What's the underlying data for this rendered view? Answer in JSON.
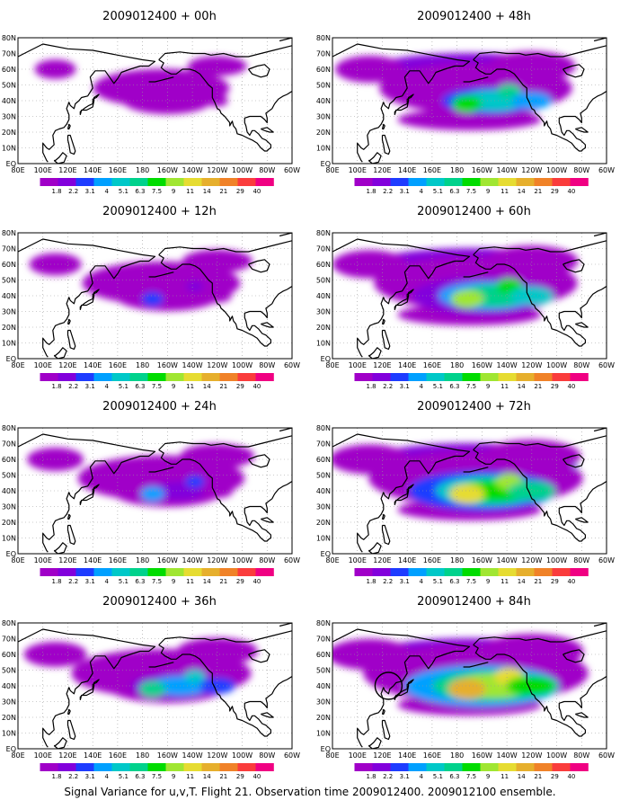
{
  "caption": "Signal Variance for u,v,T. Flight 21. Observation time 2009012400. 2009012100 ensemble.",
  "panels": [
    {
      "title": "2009012400 + 00h",
      "intensity": 0.1
    },
    {
      "title": "2009012400 + 12h",
      "intensity": 0.3
    },
    {
      "title": "2009012400 + 24h",
      "intensity": 0.38
    },
    {
      "title": "2009012400 + 36h",
      "intensity": 0.5
    },
    {
      "title": "2009012400 + 48h",
      "intensity": 0.62
    },
    {
      "title": "2009012400 + 60h",
      "intensity": 0.72
    },
    {
      "title": "2009012400 + 72h",
      "intensity": 0.82
    },
    {
      "title": "2009012400 + 84h",
      "intensity": 0.92
    }
  ],
  "lon_labels": [
    "80E",
    "100E",
    "120E",
    "140E",
    "160E",
    "180",
    "160W",
    "140W",
    "120W",
    "100W",
    "80W",
    "60W"
  ],
  "lat_labels": [
    "80N",
    "70N",
    "60N",
    "50N",
    "40N",
    "30N",
    "20N",
    "10N",
    "EQ"
  ],
  "colorbar": {
    "labels": [
      "1.8",
      "2.2",
      "3.1",
      "4",
      "5.1",
      "6.3",
      "7.5",
      "9",
      "11",
      "14",
      "21",
      "29",
      "40"
    ],
    "colors": [
      "#a000c8",
      "#8200dc",
      "#1e3cff",
      "#00a0ff",
      "#00c8c8",
      "#00d28c",
      "#00dc00",
      "#a0e632",
      "#e6dc32",
      "#e6af2d",
      "#f08228",
      "#fa3c3c",
      "#f00082"
    ]
  },
  "marker": {
    "label": "circle",
    "lon": 125,
    "lat": 40
  }
}
